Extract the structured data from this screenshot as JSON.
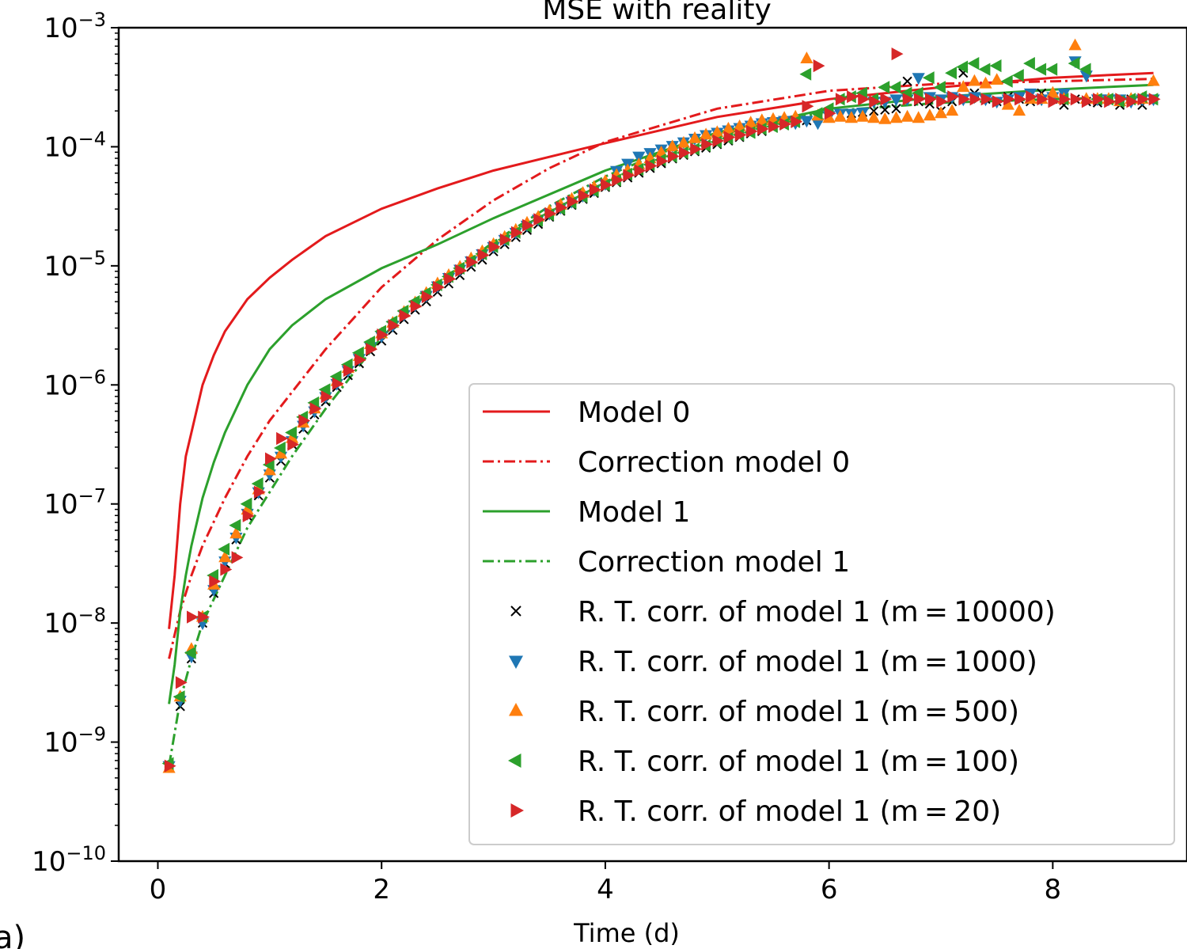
{
  "chart_data": {
    "type": "line",
    "title": "MSE with reality",
    "xlabel": "Time (d)",
    "ylabel": "",
    "panel_label": "a)",
    "xlim": [
      -0.35,
      9.2
    ],
    "ylim_log10": [
      -10,
      -3
    ],
    "yscale": "log",
    "grid": false,
    "legend_position": "lower-right",
    "x_ticks": [
      {
        "value": 0,
        "label": "0"
      },
      {
        "value": 2,
        "label": "2"
      },
      {
        "value": 4,
        "label": "4"
      },
      {
        "value": 6,
        "label": "6"
      },
      {
        "value": 8,
        "label": "8"
      }
    ],
    "y_ticks": [
      {
        "exp": -3,
        "base": "10",
        "sup": "−3"
      },
      {
        "exp": -4,
        "base": "10",
        "sup": "−4"
      },
      {
        "exp": -5,
        "base": "10",
        "sup": "−5"
      },
      {
        "exp": -6,
        "base": "10",
        "sup": "−6"
      },
      {
        "exp": -7,
        "base": "10",
        "sup": "−7"
      },
      {
        "exp": -8,
        "base": "10",
        "sup": "−8"
      },
      {
        "exp": -9,
        "base": "10",
        "sup": "−9"
      },
      {
        "exp": -10,
        "base": "10",
        "sup": "−10"
      }
    ],
    "series": [
      {
        "name": "Model 0",
        "style": "solid",
        "color": "#e31a1c",
        "x": [
          0.1,
          0.15,
          0.2,
          0.25,
          0.3,
          0.4,
          0.5,
          0.6,
          0.8,
          1.0,
          1.2,
          1.5,
          2.0,
          2.5,
          3.0,
          4.0,
          5.0,
          6.0,
          7.0,
          8.0,
          8.9
        ],
        "log10y": [
          -8.05,
          -7.6,
          -7.0,
          -6.6,
          -6.4,
          -6.0,
          -5.75,
          -5.55,
          -5.28,
          -5.1,
          -4.95,
          -4.75,
          -4.52,
          -4.35,
          -4.2,
          -3.97,
          -3.75,
          -3.6,
          -3.5,
          -3.42,
          -3.38
        ]
      },
      {
        "name": "Correction model 0",
        "style": "dashdot",
        "color": "#e31a1c",
        "x": [
          0.1,
          0.2,
          0.3,
          0.4,
          0.6,
          0.8,
          1.0,
          1.5,
          2.0,
          2.5,
          3.0,
          3.5,
          4.0,
          5.0,
          6.0,
          7.0,
          8.0,
          8.9
        ],
        "log10y": [
          -8.3,
          -7.9,
          -7.6,
          -7.35,
          -6.95,
          -6.6,
          -6.3,
          -5.7,
          -5.18,
          -4.78,
          -4.45,
          -4.18,
          -3.96,
          -3.68,
          -3.53,
          -3.47,
          -3.45,
          -3.43
        ]
      },
      {
        "name": "Model 1",
        "style": "solid",
        "color": "#2ca02c",
        "x": [
          0.1,
          0.15,
          0.2,
          0.25,
          0.3,
          0.4,
          0.5,
          0.6,
          0.8,
          1.0,
          1.2,
          1.5,
          2.0,
          2.5,
          3.0,
          4.0,
          5.0,
          6.0,
          7.0,
          8.0,
          8.9
        ],
        "log10y": [
          -8.68,
          -8.35,
          -7.9,
          -7.6,
          -7.35,
          -6.95,
          -6.65,
          -6.4,
          -6.0,
          -5.7,
          -5.5,
          -5.28,
          -5.02,
          -4.82,
          -4.6,
          -4.2,
          -3.88,
          -3.68,
          -3.58,
          -3.52,
          -3.48
        ]
      },
      {
        "name": "Correction model 1",
        "style": "dashdot",
        "color": "#2ca02c",
        "x": [
          0.1,
          0.2,
          0.3,
          0.4,
          0.6,
          0.8,
          1.0,
          1.2,
          1.5,
          2.0,
          2.5,
          3.0,
          3.5,
          4.0,
          4.5,
          5.0,
          5.5,
          6.0,
          7.0,
          8.0,
          8.9
        ],
        "log10y": [
          -9.2,
          -8.65,
          -8.3,
          -8.0,
          -7.6,
          -7.2,
          -6.9,
          -6.6,
          -6.2,
          -5.6,
          -5.15,
          -4.8,
          -4.5,
          -4.25,
          -4.05,
          -3.9,
          -3.8,
          -3.7,
          -3.63,
          -3.6,
          -3.58
        ]
      }
    ],
    "scatter_series": [
      {
        "name": "R. T. corr. of model 1 (m = 10000)",
        "legend_label": "R. T. corr. of model 1 (m = 10000)",
        "marker": "x",
        "color": "#000000"
      },
      {
        "name": "R. T. corr. of model 1 (m = 1000)",
        "legend_label": "R. T. corr. of model 1 (m = 1000)",
        "marker": "triangle-down",
        "color": "#1f77b4"
      },
      {
        "name": "R. T. corr. of model 1 (m = 500)",
        "legend_label": "R. T. corr. of model 1 (m = 500)",
        "marker": "triangle-up",
        "color": "#ff7f0e"
      },
      {
        "name": "R. T. corr. of model 1 (m = 100)",
        "legend_label": "R. T. corr. of model 1 (m = 100)",
        "marker": "triangle-left",
        "color": "#2ca02c"
      },
      {
        "name": "R. T. corr. of model 1 (m = 20)",
        "legend_label": "R. T. corr. of model 1 (m = 20)",
        "marker": "triangle-right",
        "color": "#d62728"
      }
    ],
    "scatter_x": [
      0.1,
      0.2,
      0.3,
      0.4,
      0.5,
      0.6,
      0.7,
      0.8,
      0.9,
      1.0,
      1.1,
      1.2,
      1.3,
      1.4,
      1.5,
      1.6,
      1.7,
      1.8,
      1.9,
      2.0,
      2.1,
      2.2,
      2.3,
      2.4,
      2.5,
      2.6,
      2.7,
      2.8,
      2.9,
      3.0,
      3.1,
      3.2,
      3.3,
      3.4,
      3.5,
      3.6,
      3.7,
      3.8,
      3.9,
      4.0,
      4.1,
      4.2,
      4.3,
      4.4,
      4.5,
      4.6,
      4.7,
      4.8,
      4.9,
      5.0,
      5.1,
      5.2,
      5.3,
      5.4,
      5.5,
      5.6,
      5.7,
      5.8,
      5.9,
      6.0,
      6.1,
      6.2,
      6.3,
      6.4,
      6.5,
      6.6,
      6.7,
      6.8,
      6.9,
      7.0,
      7.1,
      7.2,
      7.3,
      7.4,
      7.5,
      7.6,
      7.7,
      7.8,
      7.9,
      8.0,
      8.1,
      8.2,
      8.3,
      8.4,
      8.5,
      8.6,
      8.7,
      8.8,
      8.9
    ],
    "scatter_log10y": [
      [
        -9.2,
        -8.7,
        -8.3,
        -8.0,
        -7.75,
        -7.5,
        -7.3,
        -7.1,
        -6.93,
        -6.78,
        -6.64,
        -6.5,
        -6.37,
        -6.25,
        -6.14,
        -6.02,
        -5.92,
        -5.82,
        -5.72,
        -5.63,
        -5.54,
        -5.45,
        -5.37,
        -5.3,
        -5.22,
        -5.15,
        -5.08,
        -5.01,
        -4.95,
        -4.88,
        -4.82,
        -4.76,
        -4.7,
        -4.65,
        -4.59,
        -4.54,
        -4.49,
        -4.44,
        -4.39,
        -4.34,
        -4.3,
        -4.26,
        -4.22,
        -4.18,
        -4.14,
        -4.1,
        -4.07,
        -4.04,
        -4.01,
        -3.98,
        -3.95,
        -3.92,
        -3.89,
        -3.87,
        -3.84,
        -3.82,
        -3.8,
        -3.78,
        -3.76,
        -3.74,
        -3.73,
        -3.72,
        -3.71,
        -3.7,
        -3.69,
        -3.68,
        -3.45,
        -3.62,
        -3.64,
        -3.7,
        -3.62,
        -3.38,
        -3.55,
        -3.6,
        -3.62,
        -3.58,
        -3.6,
        -3.62,
        -3.55,
        -3.6,
        -3.65,
        -3.6,
        -3.62,
        -3.63,
        -3.6,
        -3.65,
        -3.6,
        -3.65,
        -3.6
      ],
      [
        -9.2,
        -8.65,
        -8.28,
        -8.0,
        -7.72,
        -7.48,
        -7.28,
        -7.08,
        -6.9,
        -6.75,
        -6.6,
        -6.47,
        -6.34,
        -6.22,
        -6.1,
        -5.99,
        -5.88,
        -5.78,
        -5.68,
        -5.59,
        -5.5,
        -5.41,
        -5.33,
        -5.25,
        -5.17,
        -5.1,
        -5.03,
        -4.96,
        -4.9,
        -4.84,
        -4.78,
        -4.72,
        -4.66,
        -4.61,
        -4.56,
        -4.51,
        -4.46,
        -4.41,
        -4.36,
        -4.31,
        -4.2,
        -4.14,
        -4.08,
        -4.05,
        -4.02,
        -3.99,
        -3.96,
        -3.93,
        -3.9,
        -3.88,
        -3.86,
        -3.84,
        -3.82,
        -3.8,
        -3.79,
        -3.78,
        -3.8,
        -3.78,
        -3.8,
        -3.74,
        -3.72,
        -3.72,
        -3.71,
        -3.62,
        -3.62,
        -3.6,
        -3.6,
        -3.42,
        -3.58,
        -3.6,
        -3.58,
        -3.6,
        -3.58,
        -3.6,
        -3.62,
        -3.6,
        -3.58,
        -3.55,
        -3.6,
        -3.58,
        -3.55,
        -3.28,
        -3.4,
        -3.6,
        -3.6,
        -3.6,
        -3.62,
        -3.6,
        -3.6
      ],
      [
        -9.22,
        -8.62,
        -8.22,
        -7.95,
        -7.68,
        -7.45,
        -7.25,
        -7.05,
        -6.88,
        -6.72,
        -6.58,
        -6.45,
        -6.32,
        -6.2,
        -6.08,
        -5.97,
        -5.86,
        -5.76,
        -5.66,
        -5.57,
        -5.48,
        -5.39,
        -5.31,
        -5.23,
        -5.15,
        -5.08,
        -5.01,
        -4.94,
        -4.88,
        -4.82,
        -4.76,
        -4.7,
        -4.64,
        -4.59,
        -4.54,
        -4.49,
        -4.44,
        -4.39,
        -4.34,
        -4.29,
        -4.24,
        -4.2,
        -4.15,
        -4.1,
        -4.05,
        -4.0,
        -3.97,
        -3.93,
        -3.9,
        -3.88,
        -3.85,
        -3.83,
        -3.8,
        -3.78,
        -3.77,
        -3.76,
        -3.75,
        -3.26,
        -3.74,
        -3.76,
        -3.75,
        -3.76,
        -3.75,
        -3.76,
        -3.77,
        -3.76,
        -3.75,
        -3.76,
        -3.74,
        -3.72,
        -3.7,
        -3.5,
        -3.45,
        -3.47,
        -3.44,
        -3.65,
        -3.7,
        -3.6,
        -3.6,
        -3.55,
        -3.6,
        -3.15,
        -3.6,
        -3.6,
        -3.6,
        -3.62,
        -3.6,
        -3.6,
        -3.45
      ],
      [
        -9.18,
        -8.62,
        -8.25,
        -7.95,
        -7.6,
        -7.38,
        -7.18,
        -7.0,
        -6.83,
        -6.67,
        -6.53,
        -6.4,
        -6.27,
        -6.15,
        -6.04,
        -5.93,
        -5.83,
        -5.73,
        -5.64,
        -5.55,
        -5.47,
        -5.38,
        -5.3,
        -5.23,
        -5.16,
        -5.09,
        -5.02,
        -4.96,
        -4.9,
        -4.84,
        -4.78,
        -4.72,
        -4.67,
        -4.62,
        -4.57,
        -4.52,
        -4.47,
        -4.42,
        -4.37,
        -4.32,
        -4.28,
        -4.23,
        -4.19,
        -4.15,
        -4.11,
        -4.08,
        -4.05,
        -4.02,
        -3.99,
        -3.96,
        -3.93,
        -3.9,
        -3.88,
        -3.85,
        -3.83,
        -3.81,
        -3.79,
        -3.39,
        -3.72,
        -3.68,
        -3.6,
        -3.58,
        -3.55,
        -3.6,
        -3.5,
        -3.5,
        -3.55,
        -3.55,
        -3.42,
        -3.5,
        -3.38,
        -3.33,
        -3.3,
        -3.35,
        -3.32,
        -3.45,
        -3.4,
        -3.3,
        -3.35,
        -3.35,
        -3.6,
        -3.3,
        -3.35,
        -3.6,
        -3.6,
        -3.62,
        -3.6,
        -3.58,
        -3.6
      ],
      [
        -9.2,
        -8.5,
        -7.95,
        -7.95,
        -7.65,
        -7.55,
        -7.45,
        -7.1,
        -6.9,
        -6.62,
        -6.45,
        -6.5,
        -6.3,
        -6.2,
        -6.1,
        -5.99,
        -5.88,
        -5.79,
        -5.7,
        -5.58,
        -5.5,
        -5.42,
        -5.34,
        -5.26,
        -5.18,
        -5.11,
        -5.04,
        -4.97,
        -4.91,
        -4.84,
        -4.78,
        -4.72,
        -4.66,
        -4.61,
        -4.56,
        -4.51,
        -4.46,
        -4.41,
        -4.36,
        -4.32,
        -4.28,
        -4.24,
        -4.2,
        -4.16,
        -4.12,
        -4.08,
        -4.05,
        -4.02,
        -3.98,
        -3.95,
        -3.92,
        -3.9,
        -3.87,
        -3.85,
        -3.83,
        -3.81,
        -3.79,
        -3.66,
        -3.32,
        -3.72,
        -3.6,
        -3.58,
        -3.6,
        -3.62,
        -3.6,
        -3.22,
        -3.6,
        -3.6,
        -3.6,
        -3.62,
        -3.58,
        -3.6,
        -3.6,
        -3.6,
        -3.62,
        -3.6,
        -3.6,
        -3.58,
        -3.6,
        -3.62,
        -3.6,
        -3.6,
        -3.62,
        -3.6,
        -3.62,
        -3.6,
        -3.62,
        -3.6,
        -3.6
      ]
    ]
  }
}
